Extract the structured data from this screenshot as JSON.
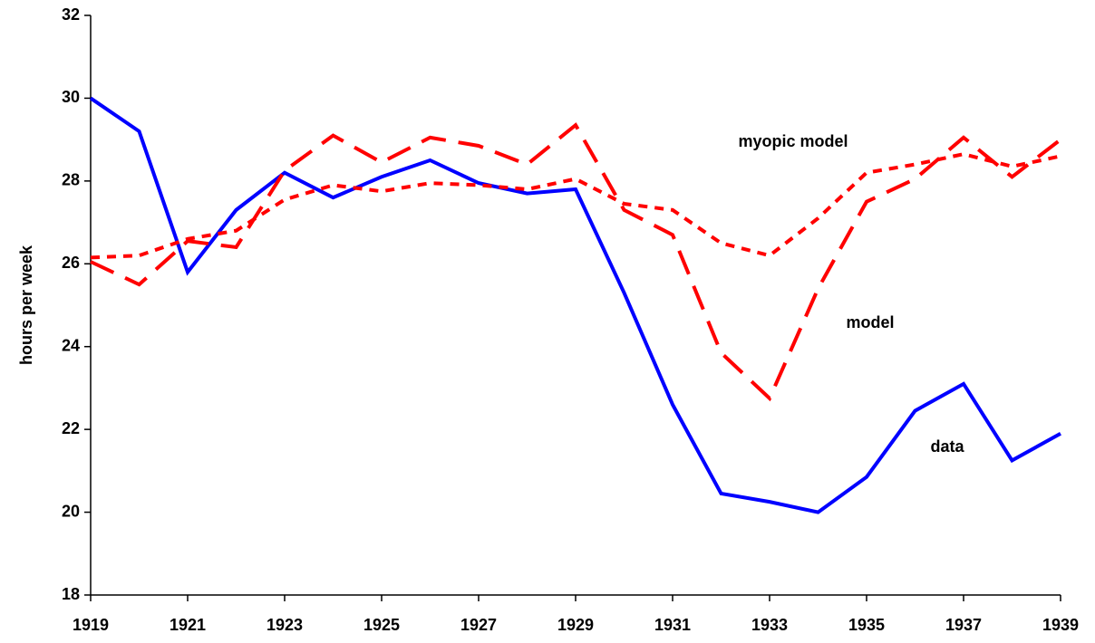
{
  "chart_data": {
    "type": "line",
    "ylabel": "hours per week",
    "x": [
      1919,
      1920,
      1921,
      1922,
      1923,
      1924,
      1925,
      1926,
      1927,
      1928,
      1929,
      1930,
      1931,
      1932,
      1933,
      1934,
      1935,
      1936,
      1937,
      1938,
      1939
    ],
    "series": [
      {
        "name": "data",
        "color": "#0000ff",
        "dash": "solid",
        "values": [
          30.0,
          29.2,
          25.8,
          27.3,
          28.2,
          27.6,
          28.1,
          28.5,
          27.95,
          27.7,
          27.8,
          25.3,
          22.6,
          20.45,
          20.25,
          20.0,
          20.85,
          22.45,
          23.1,
          21.25,
          21.9
        ]
      },
      {
        "name": "model",
        "color": "#ff0000",
        "dash": "dashed",
        "values": [
          26.05,
          25.5,
          26.55,
          26.4,
          28.25,
          29.1,
          28.45,
          29.05,
          28.85,
          28.4,
          29.35,
          27.3,
          26.7,
          23.85,
          22.75,
          25.4,
          27.5,
          28.05,
          29.05,
          28.1,
          29.0
        ]
      },
      {
        "name": "myopic model",
        "color": "#ff0000",
        "dash": "dotted",
        "values": [
          26.15,
          26.2,
          26.6,
          26.8,
          27.55,
          27.9,
          27.75,
          27.95,
          27.9,
          27.8,
          28.05,
          27.45,
          27.3,
          26.5,
          26.2,
          27.1,
          28.2,
          28.4,
          28.65,
          28.35,
          28.6
        ]
      }
    ],
    "xlim": [
      1919,
      1939
    ],
    "xticks": [
      1919,
      1921,
      1923,
      1925,
      1927,
      1929,
      1931,
      1933,
      1935,
      1937,
      1939
    ],
    "ylim": [
      18,
      32
    ],
    "yticks": [
      18,
      20,
      22,
      24,
      26,
      28,
      30,
      32
    ],
    "grid": false
  }
}
